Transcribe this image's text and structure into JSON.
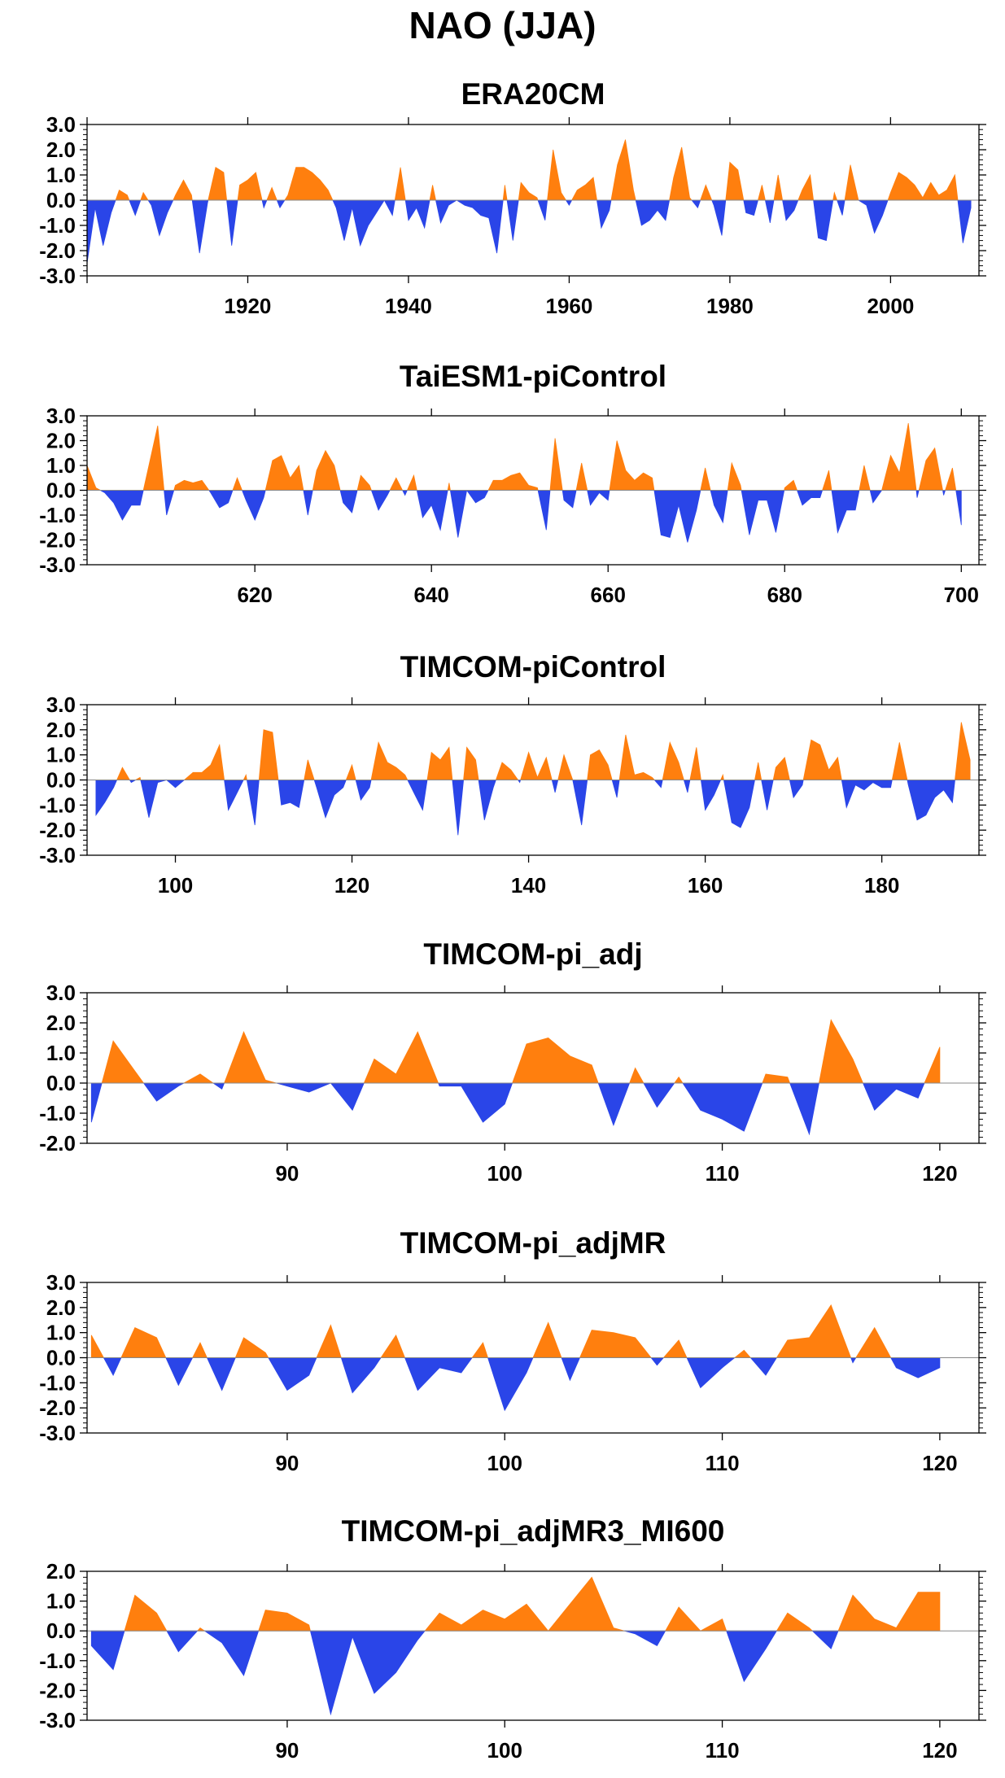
{
  "figure": {
    "title": "NAO (JJA)",
    "colors": {
      "positive": "#FF7F0E",
      "negative": "#2A45E8",
      "axis": "#000000"
    }
  },
  "chart_data": [
    {
      "type": "area",
      "title": "ERA20CM",
      "xlabel": "",
      "ylabel": "",
      "xlim": [
        1900,
        2011
      ],
      "ylim": [
        -3,
        3
      ],
      "yticks": [
        3,
        2,
        1,
        0,
        -1,
        -2,
        -3
      ],
      "ytick_labels": [
        "3.0",
        "2.0",
        "1.0",
        "0.0",
        "-1.0",
        "-2.0",
        "-3.0"
      ],
      "xticks": [
        1920,
        1940,
        1960,
        1980,
        2000
      ],
      "xtick_labels": [
        "1920",
        "1940",
        "1960",
        "1980",
        "2000"
      ],
      "grid": false,
      "fill": "positive orange, negative blue",
      "series": [
        {
          "x": [
            1900,
            1901,
            1902,
            1903,
            1904,
            1905,
            1906,
            1907,
            1908,
            1909,
            1910,
            1911,
            1912,
            1913,
            1914,
            1915,
            1916,
            1917,
            1918,
            1919,
            1920,
            1921,
            1922,
            1923,
            1924,
            1925,
            1926,
            1927,
            1928,
            1929,
            1930,
            1931,
            1932,
            1933,
            1934,
            1935,
            1936,
            1937,
            1938,
            1939,
            1940,
            1941,
            1942,
            1943,
            1944,
            1945,
            1946,
            1947,
            1948,
            1949,
            1950,
            1951,
            1952,
            1953,
            1954,
            1955,
            1956,
            1957,
            1958,
            1959,
            1960,
            1961,
            1962,
            1963,
            1964,
            1965,
            1966,
            1967,
            1968,
            1969,
            1970,
            1971,
            1972,
            1973,
            1974,
            1975,
            1976,
            1977,
            1978,
            1979,
            1980,
            1981,
            1982,
            1983,
            1984,
            1985,
            1986,
            1987,
            1988,
            1989,
            1990,
            1991,
            1992,
            1993,
            1994,
            1995,
            1996,
            1997,
            1998,
            1999,
            2000,
            2001,
            2002,
            2003,
            2004,
            2005,
            2006,
            2007,
            2008,
            2009,
            2010
          ],
          "values": [
            -2.5,
            -0.3,
            -1.8,
            -0.5,
            0.4,
            0.2,
            -0.6,
            0.3,
            -0.2,
            -1.4,
            -0.5,
            0.2,
            0.8,
            0.2,
            -2.1,
            -0.1,
            1.3,
            1.1,
            -1.8,
            0.6,
            0.8,
            1.1,
            -0.3,
            0.5,
            -0.3,
            0.2,
            1.3,
            1.3,
            1.1,
            0.8,
            0.4,
            -0.3,
            -1.6,
            -0.3,
            -1.8,
            -1.0,
            -0.5,
            0.0,
            -0.6,
            1.3,
            -0.8,
            -0.3,
            -1.1,
            0.6,
            -0.9,
            -0.2,
            0.0,
            -0.2,
            -0.3,
            -0.6,
            -0.7,
            -2.1,
            0.6,
            -1.6,
            0.7,
            0.3,
            0.1,
            -0.8,
            2.0,
            0.3,
            -0.2,
            0.4,
            0.6,
            0.9,
            -1.1,
            -0.4,
            1.4,
            2.4,
            0.4,
            -1.0,
            -0.8,
            -0.4,
            -0.8,
            0.9,
            2.1,
            0.1,
            -0.3,
            0.6,
            -0.2,
            -1.4,
            1.5,
            1.2,
            -0.5,
            -0.6,
            0.6,
            -0.9,
            1.0,
            -0.8,
            -0.4,
            0.4,
            1.0,
            -1.5,
            -1.6,
            0.3,
            -0.6,
            1.4,
            0.0,
            -0.2,
            -1.3,
            -0.6,
            0.3,
            1.1,
            0.9,
            0.6,
            0.1,
            0.7,
            0.2,
            0.4,
            1.0,
            -1.7,
            -0.3
          ]
        }
      ]
    },
    {
      "type": "area",
      "title": "TaiESM1-piControl",
      "xlabel": "",
      "ylabel": "",
      "xlim": [
        601,
        702
      ],
      "ylim": [
        -3,
        3
      ],
      "yticks": [
        3,
        2,
        1,
        0,
        -1,
        -2,
        -3
      ],
      "ytick_labels": [
        "3.0",
        "2.0",
        "1.0",
        "0.0",
        "-1.0",
        "-2.0",
        "-3.0"
      ],
      "xticks": [
        620,
        640,
        660,
        680,
        700
      ],
      "xtick_labels": [
        "620",
        "640",
        "660",
        "680",
        "700"
      ],
      "grid": false,
      "fill": "positive orange, negative blue",
      "series": [
        {
          "x": [
            601,
            602,
            603,
            604,
            605,
            606,
            607,
            608,
            609,
            610,
            611,
            612,
            613,
            614,
            615,
            616,
            617,
            618,
            619,
            620,
            621,
            622,
            623,
            624,
            625,
            626,
            627,
            628,
            629,
            630,
            631,
            632,
            633,
            634,
            635,
            636,
            637,
            638,
            639,
            640,
            641,
            642,
            643,
            644,
            645,
            646,
            647,
            648,
            649,
            650,
            651,
            652,
            653,
            654,
            655,
            656,
            657,
            658,
            659,
            660,
            661,
            662,
            663,
            664,
            665,
            666,
            667,
            668,
            669,
            670,
            671,
            672,
            673,
            674,
            675,
            676,
            677,
            678,
            679,
            680,
            681,
            682,
            683,
            684,
            685,
            686,
            687,
            688,
            689,
            690,
            691,
            692,
            693,
            694,
            695,
            696,
            697,
            698,
            699,
            700
          ],
          "values": [
            1.0,
            0.1,
            -0.1,
            -0.5,
            -1.2,
            -0.6,
            -0.6,
            1.0,
            2.6,
            -1.0,
            0.2,
            0.4,
            0.3,
            0.4,
            -0.1,
            -0.7,
            -0.5,
            0.5,
            -0.4,
            -1.2,
            -0.3,
            1.2,
            1.4,
            0.5,
            1.0,
            -1.0,
            0.8,
            1.6,
            1.0,
            -0.5,
            -0.9,
            0.6,
            0.2,
            -0.8,
            -0.2,
            0.5,
            -0.2,
            0.6,
            -1.1,
            -0.6,
            -1.6,
            0.3,
            -1.9,
            0.0,
            -0.5,
            -0.3,
            0.4,
            0.4,
            0.6,
            0.7,
            0.2,
            0.1,
            -1.6,
            2.1,
            -0.4,
            -0.7,
            1.1,
            -0.6,
            -0.1,
            -0.4,
            2.0,
            0.8,
            0.4,
            0.7,
            0.5,
            -1.8,
            -1.9,
            -0.6,
            -2.1,
            -0.8,
            0.9,
            -0.6,
            -1.3,
            1.1,
            0.2,
            -1.8,
            -0.4,
            -0.4,
            -1.7,
            0.1,
            0.4,
            -0.6,
            -0.3,
            -0.3,
            0.8,
            -1.7,
            -0.8,
            -0.8,
            1.0,
            -0.5,
            0.0,
            1.4,
            0.7,
            2.7,
            -0.3,
            1.2,
            1.7,
            -0.2,
            0.9,
            -1.4
          ]
        }
      ]
    },
    {
      "type": "area",
      "title": "TIMCOM-piControl",
      "xlabel": "",
      "ylabel": "",
      "xlim": [
        90,
        191
      ],
      "ylim": [
        -3,
        3
      ],
      "yticks": [
        3,
        2,
        1,
        0,
        -1,
        -2,
        -3
      ],
      "ytick_labels": [
        "3.0",
        "2.0",
        "1.0",
        "0.0",
        "-1.0",
        "-2.0",
        "-3.0"
      ],
      "xticks": [
        100,
        120,
        140,
        160,
        180
      ],
      "xtick_labels": [
        "100",
        "120",
        "140",
        "160",
        "180"
      ],
      "grid": false,
      "fill": "positive orange, negative blue",
      "series": [
        {
          "x": [
            91,
            92,
            93,
            94,
            95,
            96,
            97,
            98,
            99,
            100,
            101,
            102,
            103,
            104,
            105,
            106,
            107,
            108,
            109,
            110,
            111,
            112,
            113,
            114,
            115,
            116,
            117,
            118,
            119,
            120,
            121,
            122,
            123,
            124,
            125,
            126,
            127,
            128,
            129,
            130,
            131,
            132,
            133,
            134,
            135,
            136,
            137,
            138,
            139,
            140,
            141,
            142,
            143,
            144,
            145,
            146,
            147,
            148,
            149,
            150,
            151,
            152,
            153,
            154,
            155,
            156,
            157,
            158,
            159,
            160,
            161,
            162,
            163,
            164,
            165,
            166,
            167,
            168,
            169,
            170,
            171,
            172,
            173,
            174,
            175,
            176,
            177,
            178,
            179,
            180,
            181,
            182,
            183,
            184,
            185,
            186,
            187,
            188,
            189,
            190
          ],
          "values": [
            -1.4,
            -0.9,
            -0.3,
            0.5,
            -0.1,
            0.1,
            -1.5,
            -0.1,
            0.0,
            -0.3,
            0.0,
            0.3,
            0.3,
            0.6,
            1.4,
            -1.2,
            -0.5,
            0.2,
            -1.8,
            2.0,
            1.9,
            -1.0,
            -0.9,
            -1.1,
            0.8,
            -0.3,
            -1.5,
            -0.6,
            -0.3,
            0.6,
            -0.8,
            -0.3,
            1.5,
            0.7,
            0.5,
            0.2,
            -0.5,
            -1.2,
            1.1,
            0.8,
            1.3,
            -2.2,
            1.3,
            0.8,
            -1.6,
            -0.3,
            0.7,
            0.4,
            -0.1,
            1.1,
            0.1,
            0.9,
            -0.5,
            1.0,
            0.0,
            -1.8,
            1.0,
            1.2,
            0.6,
            -0.7,
            1.8,
            0.2,
            0.3,
            0.1,
            -0.3,
            1.5,
            0.7,
            -0.5,
            1.3,
            -1.2,
            -0.6,
            0.2,
            -1.7,
            -1.9,
            -1.1,
            0.7,
            -1.2,
            0.5,
            0.9,
            -0.7,
            -0.2,
            1.6,
            1.4,
            0.4,
            0.9,
            -1.1,
            -0.2,
            -0.4,
            -0.1,
            -0.3,
            -0.3,
            1.5,
            -0.2,
            -1.6,
            -1.4,
            -0.7,
            -0.4,
            -0.9,
            2.3,
            0.8
          ]
        }
      ]
    },
    {
      "type": "area",
      "title": "TIMCOM-pi_adj",
      "xlabel": "",
      "ylabel": "",
      "xlim": [
        80.8,
        121.8
      ],
      "ylim": [
        -2,
        3
      ],
      "yticks": [
        3,
        2,
        1,
        0,
        -1,
        -2
      ],
      "ytick_labels": [
        "3.0",
        "2.0",
        "1.0",
        "0.0",
        "-1.0",
        "-2.0"
      ],
      "xticks": [
        90,
        100,
        110,
        120
      ],
      "xtick_labels": [
        "90",
        "100",
        "110",
        "120"
      ],
      "grid": false,
      "fill": "positive orange, negative blue",
      "series": [
        {
          "x": [
            81,
            82,
            83,
            84,
            85,
            86,
            87,
            88,
            89,
            90,
            91,
            92,
            93,
            94,
            95,
            96,
            97,
            98,
            99,
            100,
            101,
            102,
            103,
            104,
            105,
            106,
            107,
            108,
            109,
            110,
            111,
            112,
            113,
            114,
            115,
            116,
            117,
            118,
            119,
            120
          ],
          "values": [
            -1.3,
            1.4,
            0.4,
            -0.6,
            -0.1,
            0.3,
            -0.2,
            1.7,
            0.1,
            -0.1,
            -0.3,
            0.0,
            -0.9,
            0.8,
            0.3,
            1.7,
            -0.1,
            -0.1,
            -1.3,
            -0.7,
            1.3,
            1.5,
            0.9,
            0.6,
            -1.4,
            0.5,
            -0.8,
            0.2,
            -0.9,
            -1.2,
            -1.6,
            0.3,
            0.2,
            -1.7,
            2.1,
            0.8,
            -0.9,
            -0.2,
            -0.5,
            1.2
          ]
        }
      ]
    },
    {
      "type": "area",
      "title": "TIMCOM-pi_adjMR",
      "xlabel": "",
      "ylabel": "",
      "xlim": [
        80.8,
        121.8
      ],
      "ylim": [
        -3,
        3
      ],
      "yticks": [
        3,
        2,
        1,
        0,
        -1,
        -2,
        -3
      ],
      "ytick_labels": [
        "3.0",
        "2.0",
        "1.0",
        "0.0",
        "-1.0",
        "-2.0",
        "-3.0"
      ],
      "xticks": [
        90,
        100,
        110,
        120
      ],
      "xtick_labels": [
        "90",
        "100",
        "110",
        "120"
      ],
      "grid": false,
      "fill": "positive orange, negative blue",
      "series": [
        {
          "x": [
            81,
            82,
            83,
            84,
            85,
            86,
            87,
            88,
            89,
            90,
            91,
            92,
            93,
            94,
            95,
            96,
            97,
            98,
            99,
            100,
            101,
            102,
            103,
            104,
            105,
            106,
            107,
            108,
            109,
            110,
            111,
            112,
            113,
            114,
            115,
            116,
            117,
            118,
            119,
            120
          ],
          "values": [
            0.9,
            -0.7,
            1.2,
            0.8,
            -1.1,
            0.6,
            -1.3,
            0.8,
            0.2,
            -1.3,
            -0.7,
            1.3,
            -1.4,
            -0.4,
            0.9,
            -1.3,
            -0.4,
            -0.6,
            0.6,
            -2.1,
            -0.6,
            1.4,
            -0.9,
            1.1,
            1.0,
            0.8,
            -0.3,
            0.7,
            -1.2,
            -0.4,
            0.3,
            -0.7,
            0.7,
            0.8,
            2.1,
            -0.2,
            1.2,
            -0.4,
            -0.8,
            -0.4
          ]
        }
      ]
    },
    {
      "type": "area",
      "title": "TIMCOM-pi_adjMR3_MI600",
      "xlabel": "",
      "ylabel": "",
      "xlim": [
        80.8,
        121.8
      ],
      "ylim": [
        -3,
        2
      ],
      "yticks": [
        2,
        1,
        0,
        -1,
        -2,
        -3
      ],
      "ytick_labels": [
        "2.0",
        "1.0",
        "0.0",
        "-1.0",
        "-2.0",
        "-3.0"
      ],
      "xticks": [
        90,
        100,
        110,
        120
      ],
      "xtick_labels": [
        "90",
        "100",
        "110",
        "120"
      ],
      "grid": false,
      "fill": "positive orange, negative blue",
      "series": [
        {
          "x": [
            81,
            82,
            83,
            84,
            85,
            86,
            87,
            88,
            89,
            90,
            91,
            92,
            93,
            94,
            95,
            96,
            97,
            98,
            99,
            100,
            101,
            102,
            103,
            104,
            105,
            106,
            107,
            108,
            109,
            110,
            111,
            112,
            113,
            114,
            115,
            116,
            117,
            118,
            119,
            120
          ],
          "values": [
            -0.5,
            -1.3,
            1.2,
            0.6,
            -0.7,
            0.1,
            -0.4,
            -1.5,
            0.7,
            0.6,
            0.2,
            -2.8,
            -0.2,
            -2.1,
            -1.4,
            -0.3,
            0.6,
            0.2,
            0.7,
            0.4,
            0.9,
            0.0,
            0.9,
            1.8,
            0.1,
            -0.1,
            -0.5,
            0.8,
            0.0,
            0.4,
            -1.7,
            -0.6,
            0.6,
            0.1,
            -0.6,
            1.2,
            0.4,
            0.1,
            1.3,
            1.3
          ]
        }
      ]
    }
  ]
}
